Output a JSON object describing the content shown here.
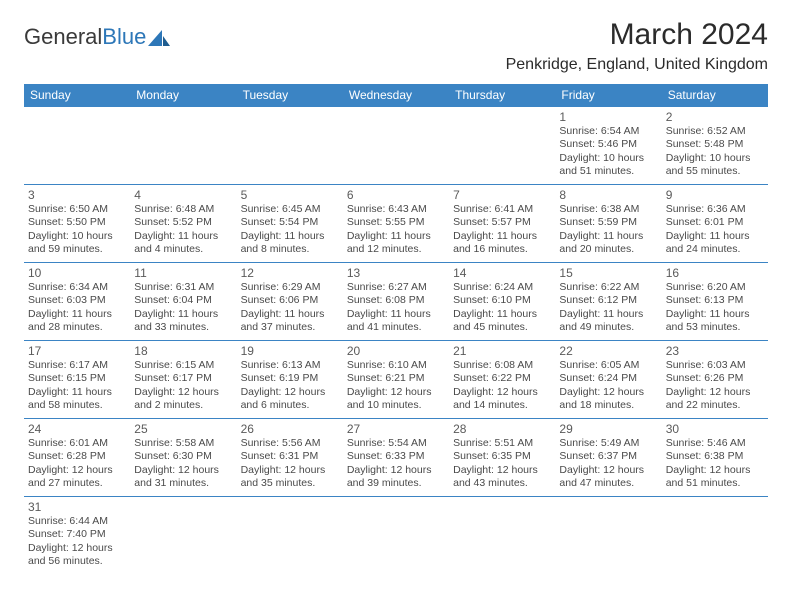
{
  "brand": {
    "part1": "General",
    "part2": "Blue"
  },
  "title": "March 2024",
  "location": "Penkridge, England, United Kingdom",
  "colors": {
    "header_bg": "#3b84c4",
    "header_text": "#ffffff",
    "border": "#3b84c4"
  },
  "day_headers": [
    "Sunday",
    "Monday",
    "Tuesday",
    "Wednesday",
    "Thursday",
    "Friday",
    "Saturday"
  ],
  "weeks": [
    [
      null,
      null,
      null,
      null,
      null,
      {
        "n": "1",
        "sr": "Sunrise: 6:54 AM",
        "ss": "Sunset: 5:46 PM",
        "dl1": "Daylight: 10 hours",
        "dl2": "and 51 minutes."
      },
      {
        "n": "2",
        "sr": "Sunrise: 6:52 AM",
        "ss": "Sunset: 5:48 PM",
        "dl1": "Daylight: 10 hours",
        "dl2": "and 55 minutes."
      }
    ],
    [
      {
        "n": "3",
        "sr": "Sunrise: 6:50 AM",
        "ss": "Sunset: 5:50 PM",
        "dl1": "Daylight: 10 hours",
        "dl2": "and 59 minutes."
      },
      {
        "n": "4",
        "sr": "Sunrise: 6:48 AM",
        "ss": "Sunset: 5:52 PM",
        "dl1": "Daylight: 11 hours",
        "dl2": "and 4 minutes."
      },
      {
        "n": "5",
        "sr": "Sunrise: 6:45 AM",
        "ss": "Sunset: 5:54 PM",
        "dl1": "Daylight: 11 hours",
        "dl2": "and 8 minutes."
      },
      {
        "n": "6",
        "sr": "Sunrise: 6:43 AM",
        "ss": "Sunset: 5:55 PM",
        "dl1": "Daylight: 11 hours",
        "dl2": "and 12 minutes."
      },
      {
        "n": "7",
        "sr": "Sunrise: 6:41 AM",
        "ss": "Sunset: 5:57 PM",
        "dl1": "Daylight: 11 hours",
        "dl2": "and 16 minutes."
      },
      {
        "n": "8",
        "sr": "Sunrise: 6:38 AM",
        "ss": "Sunset: 5:59 PM",
        "dl1": "Daylight: 11 hours",
        "dl2": "and 20 minutes."
      },
      {
        "n": "9",
        "sr": "Sunrise: 6:36 AM",
        "ss": "Sunset: 6:01 PM",
        "dl1": "Daylight: 11 hours",
        "dl2": "and 24 minutes."
      }
    ],
    [
      {
        "n": "10",
        "sr": "Sunrise: 6:34 AM",
        "ss": "Sunset: 6:03 PM",
        "dl1": "Daylight: 11 hours",
        "dl2": "and 28 minutes."
      },
      {
        "n": "11",
        "sr": "Sunrise: 6:31 AM",
        "ss": "Sunset: 6:04 PM",
        "dl1": "Daylight: 11 hours",
        "dl2": "and 33 minutes."
      },
      {
        "n": "12",
        "sr": "Sunrise: 6:29 AM",
        "ss": "Sunset: 6:06 PM",
        "dl1": "Daylight: 11 hours",
        "dl2": "and 37 minutes."
      },
      {
        "n": "13",
        "sr": "Sunrise: 6:27 AM",
        "ss": "Sunset: 6:08 PM",
        "dl1": "Daylight: 11 hours",
        "dl2": "and 41 minutes."
      },
      {
        "n": "14",
        "sr": "Sunrise: 6:24 AM",
        "ss": "Sunset: 6:10 PM",
        "dl1": "Daylight: 11 hours",
        "dl2": "and 45 minutes."
      },
      {
        "n": "15",
        "sr": "Sunrise: 6:22 AM",
        "ss": "Sunset: 6:12 PM",
        "dl1": "Daylight: 11 hours",
        "dl2": "and 49 minutes."
      },
      {
        "n": "16",
        "sr": "Sunrise: 6:20 AM",
        "ss": "Sunset: 6:13 PM",
        "dl1": "Daylight: 11 hours",
        "dl2": "and 53 minutes."
      }
    ],
    [
      {
        "n": "17",
        "sr": "Sunrise: 6:17 AM",
        "ss": "Sunset: 6:15 PM",
        "dl1": "Daylight: 11 hours",
        "dl2": "and 58 minutes."
      },
      {
        "n": "18",
        "sr": "Sunrise: 6:15 AM",
        "ss": "Sunset: 6:17 PM",
        "dl1": "Daylight: 12 hours",
        "dl2": "and 2 minutes."
      },
      {
        "n": "19",
        "sr": "Sunrise: 6:13 AM",
        "ss": "Sunset: 6:19 PM",
        "dl1": "Daylight: 12 hours",
        "dl2": "and 6 minutes."
      },
      {
        "n": "20",
        "sr": "Sunrise: 6:10 AM",
        "ss": "Sunset: 6:21 PM",
        "dl1": "Daylight: 12 hours",
        "dl2": "and 10 minutes."
      },
      {
        "n": "21",
        "sr": "Sunrise: 6:08 AM",
        "ss": "Sunset: 6:22 PM",
        "dl1": "Daylight: 12 hours",
        "dl2": "and 14 minutes."
      },
      {
        "n": "22",
        "sr": "Sunrise: 6:05 AM",
        "ss": "Sunset: 6:24 PM",
        "dl1": "Daylight: 12 hours",
        "dl2": "and 18 minutes."
      },
      {
        "n": "23",
        "sr": "Sunrise: 6:03 AM",
        "ss": "Sunset: 6:26 PM",
        "dl1": "Daylight: 12 hours",
        "dl2": "and 22 minutes."
      }
    ],
    [
      {
        "n": "24",
        "sr": "Sunrise: 6:01 AM",
        "ss": "Sunset: 6:28 PM",
        "dl1": "Daylight: 12 hours",
        "dl2": "and 27 minutes."
      },
      {
        "n": "25",
        "sr": "Sunrise: 5:58 AM",
        "ss": "Sunset: 6:30 PM",
        "dl1": "Daylight: 12 hours",
        "dl2": "and 31 minutes."
      },
      {
        "n": "26",
        "sr": "Sunrise: 5:56 AM",
        "ss": "Sunset: 6:31 PM",
        "dl1": "Daylight: 12 hours",
        "dl2": "and 35 minutes."
      },
      {
        "n": "27",
        "sr": "Sunrise: 5:54 AM",
        "ss": "Sunset: 6:33 PM",
        "dl1": "Daylight: 12 hours",
        "dl2": "and 39 minutes."
      },
      {
        "n": "28",
        "sr": "Sunrise: 5:51 AM",
        "ss": "Sunset: 6:35 PM",
        "dl1": "Daylight: 12 hours",
        "dl2": "and 43 minutes."
      },
      {
        "n": "29",
        "sr": "Sunrise: 5:49 AM",
        "ss": "Sunset: 6:37 PM",
        "dl1": "Daylight: 12 hours",
        "dl2": "and 47 minutes."
      },
      {
        "n": "30",
        "sr": "Sunrise: 5:46 AM",
        "ss": "Sunset: 6:38 PM",
        "dl1": "Daylight: 12 hours",
        "dl2": "and 51 minutes."
      }
    ],
    [
      {
        "n": "31",
        "sr": "Sunrise: 6:44 AM",
        "ss": "Sunset: 7:40 PM",
        "dl1": "Daylight: 12 hours",
        "dl2": "and 56 minutes."
      },
      null,
      null,
      null,
      null,
      null,
      null
    ]
  ]
}
